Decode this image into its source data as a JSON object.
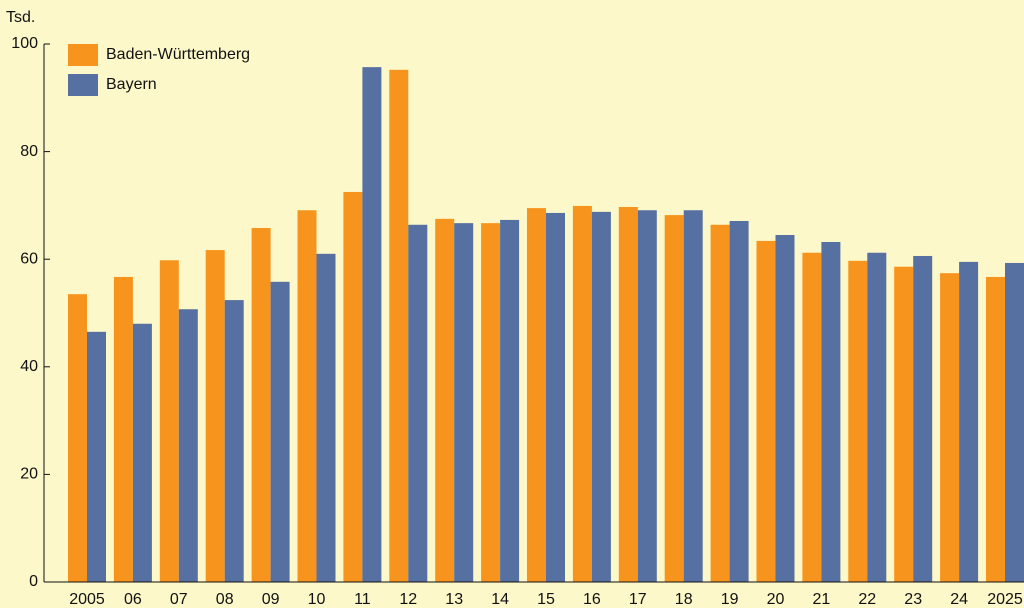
{
  "chart_data": {
    "type": "bar",
    "y_unit": "Tsd.",
    "categories": [
      "2005",
      "06",
      "07",
      "08",
      "09",
      "10",
      "11",
      "12",
      "13",
      "14",
      "15",
      "16",
      "17",
      "18",
      "19",
      "20",
      "21",
      "22",
      "23",
      "24",
      "2025"
    ],
    "series": [
      {
        "name": "Baden-Württemberg",
        "color": "#f7941d",
        "values": [
          53.5,
          56.7,
          59.8,
          61.7,
          65.8,
          69.1,
          72.5,
          95.2,
          67.5,
          66.7,
          69.5,
          69.9,
          69.7,
          68.2,
          66.4,
          63.4,
          61.2,
          59.7,
          58.6,
          57.4,
          56.7
        ]
      },
      {
        "name": "Bayern",
        "color": "#5670a1",
        "values": [
          46.5,
          48.0,
          50.7,
          52.4,
          55.8,
          61.0,
          95.7,
          66.4,
          66.7,
          67.3,
          68.6,
          68.8,
          69.1,
          69.1,
          67.1,
          64.5,
          63.2,
          61.2,
          60.6,
          59.5,
          59.3
        ]
      }
    ],
    "ylim": [
      0,
      100
    ],
    "yticks": [
      0,
      20,
      40,
      60,
      80,
      100
    ],
    "grid": false
  }
}
